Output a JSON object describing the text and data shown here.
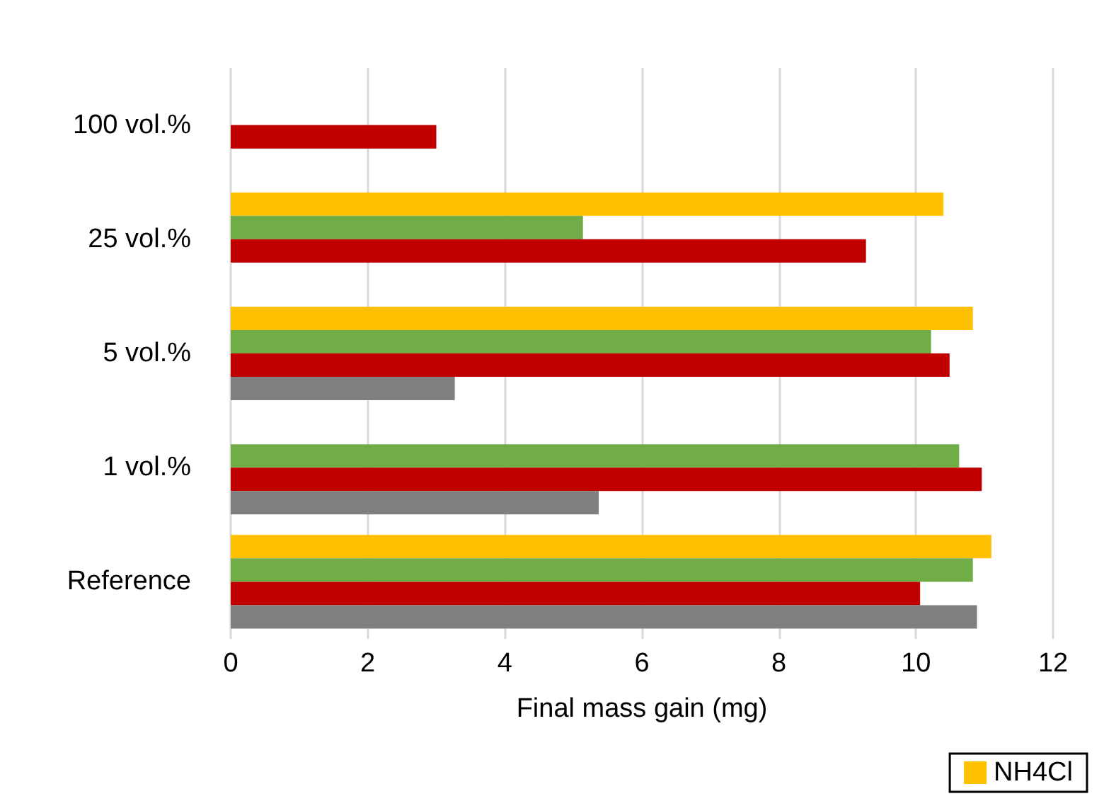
{
  "chart_data": {
    "type": "bar",
    "orientation": "horizontal",
    "xlabel": "Final mass gain (mg)",
    "categories": [
      "100 vol.%",
      "25 vol.%",
      "5 vol.%",
      "1 vol.%",
      "Reference"
    ],
    "series": [
      {
        "color": "#7f7f7f",
        "values": [
          null,
          null,
          3.27,
          5.37,
          10.89
        ]
      },
      {
        "color": "#c00000",
        "values": [
          3.0,
          9.27,
          10.49,
          10.96,
          10.06
        ]
      },
      {
        "color": "#70ad47",
        "values": [
          null,
          5.14,
          10.22,
          10.63,
          10.83
        ]
      },
      {
        "name": "NH4Cl",
        "color": "#ffc000",
        "values": [
          null,
          10.4,
          10.83,
          null,
          11.1
        ]
      }
    ],
    "xlim": [
      0,
      12
    ],
    "xticks": [
      0,
      2,
      4,
      6,
      8,
      10,
      12
    ],
    "grid": "x",
    "legend": "bottom right"
  }
}
